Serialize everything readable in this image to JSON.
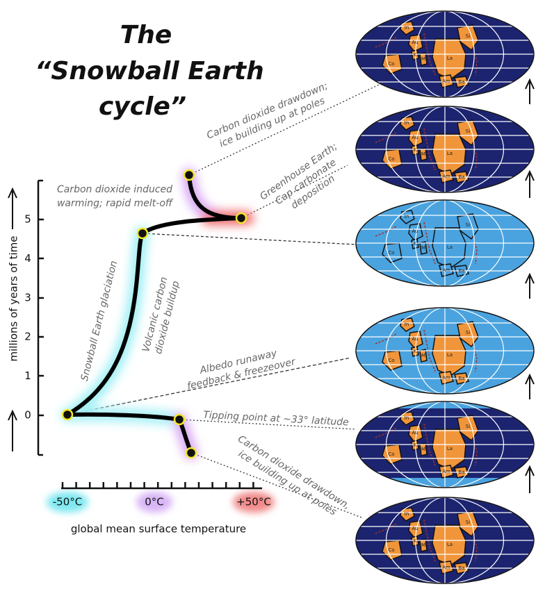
{
  "title": [
    "The",
    "“Snowball Earth",
    "cycle”"
  ],
  "y_axis_label": "millions of years of time",
  "yticks": [
    0,
    1,
    2,
    3,
    4,
    5
  ],
  "xticks": [
    "-50°C",
    "0°C",
    "+50°C"
  ],
  "x_axis_label": "global mean surface temperature",
  "annotations": {
    "drawdown_top": [
      "Carbon dioxide drawdown;",
      "ice building up at poles"
    ],
    "greenhouse": [
      "Greenhouse Earth;",
      "Cap carbonate",
      "deposition"
    ],
    "melt": [
      "Carbon dioxide induced",
      "warming; rapid melt-off"
    ],
    "glaciation": [
      "Snowball Earth glaciation"
    ],
    "volcanic": [
      "Volcanic carbon",
      "dioxide buildup"
    ],
    "albedo": [
      "Albedo runaway",
      "feedback & freezeover"
    ],
    "tipping": [
      "Tipping point at ~33° latitude"
    ],
    "drawdown_bottom": [
      "Carbon dioxide drawdown,",
      "ice building up at poles"
    ]
  },
  "continent_labels": [
    "In",
    "Si",
    "Au",
    "K",
    "M",
    "La",
    "Co",
    "Am",
    "Ba"
  ]
}
